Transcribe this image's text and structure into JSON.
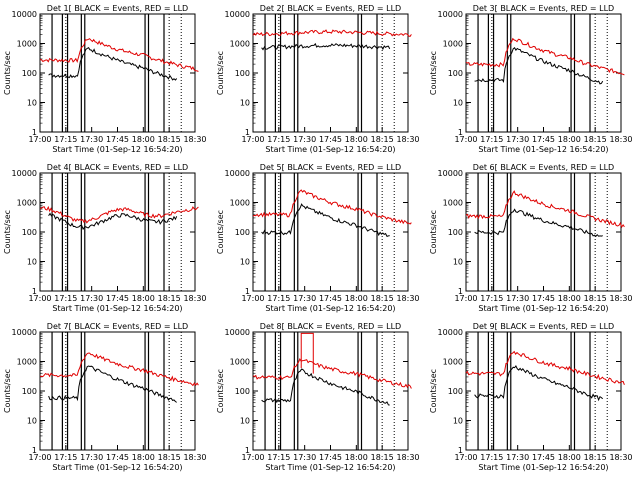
{
  "chart_data": [
    {
      "type": "line",
      "title": "Det 1[ BLACK = Events, RED = LLD",
      "ylabel": "Counts/sec",
      "xlabel": "Start Time (01-Sep-12 16:54:20)",
      "profile": "flare",
      "red_base": 280,
      "black_base": 85,
      "red_peak": 1500,
      "black_peak": 700,
      "series": [
        {
          "name": "Events",
          "color": "#000000"
        },
        {
          "name": "LLD",
          "color": "#e00000"
        }
      ]
    },
    {
      "type": "line",
      "title": "Det 2[ BLACK = Events, RED = LLD",
      "ylabel": "Counts/sec",
      "xlabel": "Start Time (01-Sep-12 16:54:20)",
      "profile": "flat",
      "red_base": 2000,
      "black_base": 700,
      "series": [
        {
          "name": "Events",
          "color": "#000000"
        },
        {
          "name": "LLD",
          "color": "#e00000"
        }
      ]
    },
    {
      "type": "line",
      "title": "Det 3[ BLACK = Events, RED = LLD",
      "ylabel": "Counts/sec",
      "xlabel": "Start Time (01-Sep-12 16:54:20)",
      "profile": "flare",
      "red_base": 200,
      "black_base": 60,
      "red_peak": 1500,
      "black_peak": 700,
      "series": [
        {
          "name": "Events",
          "color": "#000000"
        },
        {
          "name": "LLD",
          "color": "#e00000"
        }
      ]
    },
    {
      "type": "line",
      "title": "Det 4[ BLACK = Events, RED = LLD",
      "ylabel": "Counts/sec",
      "xlabel": "Start Time (01-Sep-12 16:54:20)",
      "profile": "wave",
      "red_base": 350,
      "black_base": 220,
      "series": [
        {
          "name": "Events",
          "color": "#000000"
        },
        {
          "name": "LLD",
          "color": "#e00000"
        }
      ]
    },
    {
      "type": "line",
      "title": "Det 5[ BLACK = Events, RED = LLD",
      "ylabel": "Counts/sec",
      "xlabel": "Start Time (01-Sep-12 16:54:20)",
      "profile": "flare",
      "red_base": 400,
      "black_base": 100,
      "red_peak": 2500,
      "black_peak": 800,
      "series": [
        {
          "name": "Events",
          "color": "#000000"
        },
        {
          "name": "LLD",
          "color": "#e00000"
        }
      ]
    },
    {
      "type": "line",
      "title": "Det 6[ BLACK = Events, RED = LLD",
      "ylabel": "Counts/sec",
      "xlabel": "Start Time (01-Sep-12 16:54:20)",
      "profile": "flare",
      "red_base": 350,
      "black_base": 100,
      "red_peak": 2200,
      "black_peak": 600,
      "series": [
        {
          "name": "Events",
          "color": "#000000"
        },
        {
          "name": "LLD",
          "color": "#e00000"
        }
      ]
    },
    {
      "type": "line",
      "title": "Det 7[ BLACK = Events, RED = LLD",
      "ylabel": "Counts/sec",
      "xlabel": "Start Time (01-Sep-12 16:54:20)",
      "profile": "flare",
      "red_base": 350,
      "black_base": 60,
      "red_peak": 2000,
      "black_peak": 700,
      "series": [
        {
          "name": "Events",
          "color": "#000000"
        },
        {
          "name": "LLD",
          "color": "#e00000"
        }
      ]
    },
    {
      "type": "line",
      "title": "Det 8[ BLACK = Events, RED = LLD",
      "ylabel": "Counts/sec",
      "xlabel": "Start Time (01-Sep-12 16:54:20)",
      "profile": "spike",
      "red_base": 300,
      "black_base": 50,
      "red_peak": 1200,
      "black_peak": 500,
      "series": [
        {
          "name": "Events",
          "color": "#000000"
        },
        {
          "name": "LLD",
          "color": "#e00000"
        }
      ]
    },
    {
      "type": "line",
      "title": "Det 9[ BLACK = Events, RED = LLD",
      "ylabel": "Counts/sec",
      "xlabel": "Start Time (01-Sep-12 16:54:20)",
      "profile": "flare",
      "red_base": 400,
      "black_base": 70,
      "red_peak": 2200,
      "black_peak": 700,
      "series": [
        {
          "name": "Events",
          "color": "#000000"
        },
        {
          "name": "LLD",
          "color": "#e00000"
        }
      ]
    }
  ],
  "axes": {
    "xticks": [
      "17:00",
      "17:15",
      "17:30",
      "17:45",
      "18:00",
      "18:15",
      "18:30"
    ],
    "yticks": [
      "1",
      "10",
      "100",
      "1000",
      "10000"
    ],
    "yrange": [
      1,
      10000
    ]
  },
  "markers": {
    "solid_times": [
      "17:07",
      "17:13",
      "17:16",
      "17:24",
      "17:26",
      "18:01",
      "18:03",
      "18:12"
    ],
    "dotted_times": [
      "17:15",
      "18:15",
      "18:22"
    ]
  }
}
